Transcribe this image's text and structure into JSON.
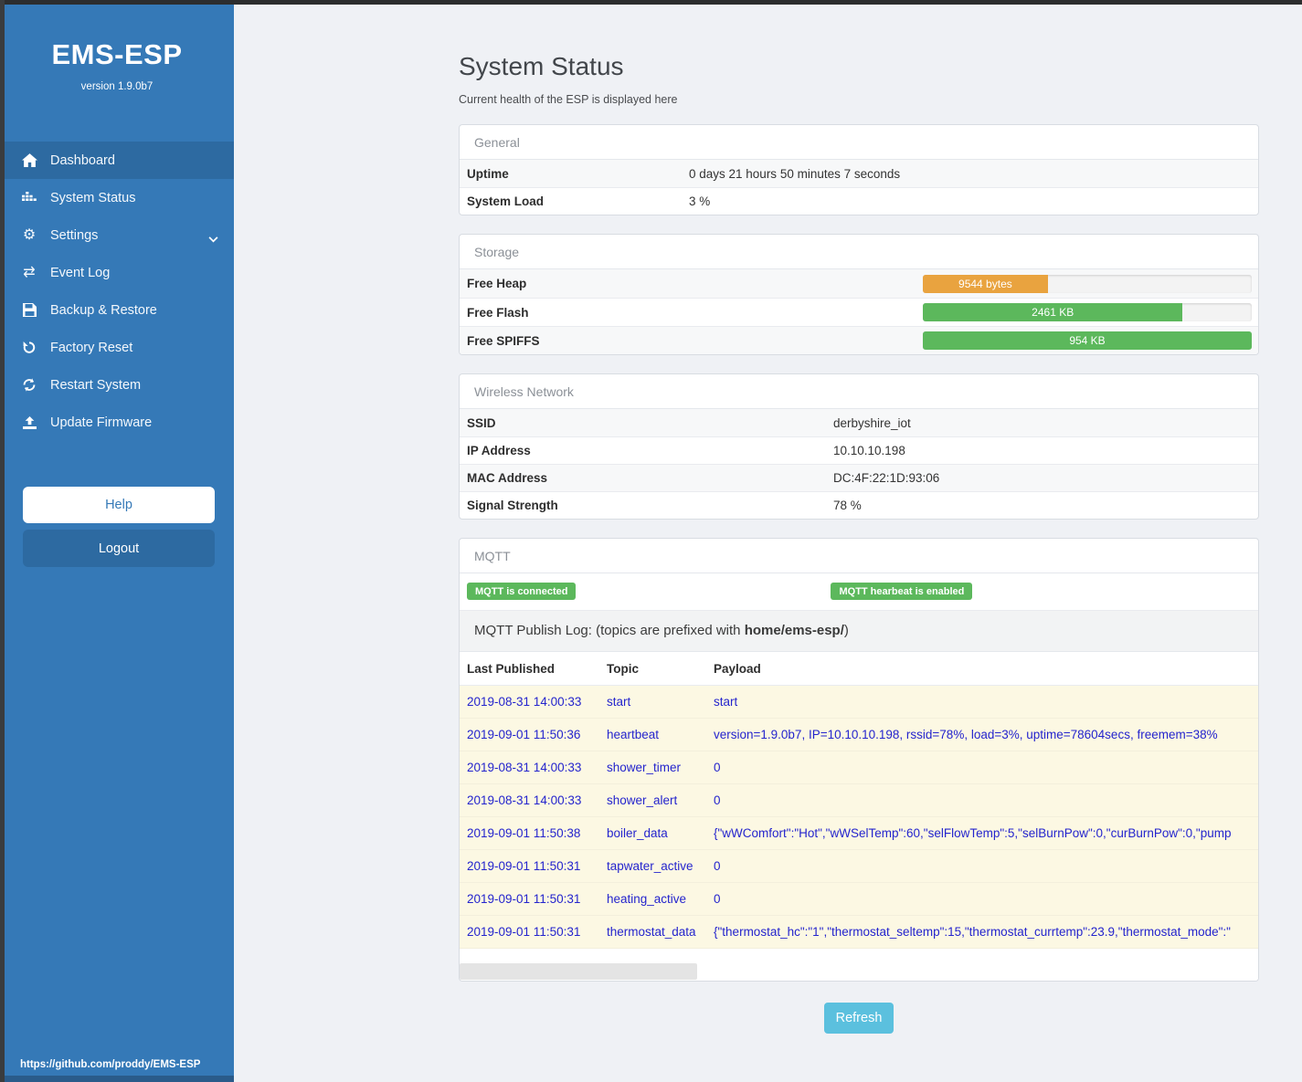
{
  "sidebar": {
    "title": "EMS-ESP",
    "version": "version 1.9.0b7",
    "items": [
      {
        "label": "Dashboard",
        "icon": "home-icon",
        "selected": true
      },
      {
        "label": "System Status",
        "icon": "system-status-icon",
        "selected": false
      },
      {
        "label": "Settings",
        "icon": "gear-icon",
        "selected": false,
        "chevron": true
      },
      {
        "label": "Event Log",
        "icon": "event-log-icon",
        "selected": false
      },
      {
        "label": "Backup & Restore",
        "icon": "save-icon",
        "selected": false
      },
      {
        "label": "Factory Reset",
        "icon": "factory-reset-icon",
        "selected": false
      },
      {
        "label": "Restart System",
        "icon": "restart-icon",
        "selected": false
      },
      {
        "label": "Update Firmware",
        "icon": "upload-icon",
        "selected": false
      }
    ],
    "help_label": "Help",
    "logout_label": "Logout",
    "footer_url": "https://github.com/proddy/EMS-ESP"
  },
  "page": {
    "title": "System Status",
    "subtitle": "Current health of the ESP is displayed here",
    "refresh_label": "Refresh"
  },
  "general": {
    "header": "General",
    "rows": [
      {
        "label": "Uptime",
        "value": "0 days 21 hours 50 minutes 7 seconds"
      },
      {
        "label": "System Load",
        "value": "3 %"
      }
    ]
  },
  "storage": {
    "header": "Storage",
    "colors": {
      "orange": "#e9a33f",
      "green": "#5cb85c"
    },
    "rows": [
      {
        "label": "Free Heap",
        "text": "9544 bytes",
        "percent": 38,
        "color": "orange"
      },
      {
        "label": "Free Flash",
        "text": "2461 KB",
        "percent": 79,
        "color": "green"
      },
      {
        "label": "Free SPIFFS",
        "text": "954 KB",
        "percent": 100,
        "color": "green"
      }
    ]
  },
  "wireless": {
    "header": "Wireless Network",
    "rows": [
      {
        "label": "SSID",
        "value": "derbyshire_iot"
      },
      {
        "label": "IP Address",
        "value": "10.10.10.198"
      },
      {
        "label": "MAC Address",
        "value": "DC:4F:22:1D:93:06"
      },
      {
        "label": "Signal Strength",
        "value": "78 %"
      }
    ]
  },
  "mqtt": {
    "header": "MQTT",
    "badges": [
      "MQTT is connected",
      "MQTT hearbeat is enabled"
    ],
    "publish_log": {
      "prefix_text": "MQTT Publish Log: (topics are prefixed with ",
      "bold_text": "home/ems-esp/",
      "suffix_text": ")"
    },
    "table": {
      "headers": [
        "Last Published",
        "Topic",
        "Payload"
      ],
      "rows": [
        {
          "date": "2019-08-31 14:00:33",
          "topic": "start",
          "payload": "start"
        },
        {
          "date": "2019-09-01 11:50:36",
          "topic": "heartbeat",
          "payload": "version=1.9.0b7, IP=10.10.10.198, rssid=78%, load=3%, uptime=78604secs, freemem=38%"
        },
        {
          "date": "2019-08-31 14:00:33",
          "topic": "shower_timer",
          "payload": "0"
        },
        {
          "date": "2019-08-31 14:00:33",
          "topic": "shower_alert",
          "payload": "0"
        },
        {
          "date": "2019-09-01 11:50:38",
          "topic": "boiler_data",
          "payload": "{\"wWComfort\":\"Hot\",\"wWSelTemp\":60,\"selFlowTemp\":5,\"selBurnPow\":0,\"curBurnPow\":0,\"pump"
        },
        {
          "date": "2019-09-01 11:50:31",
          "topic": "tapwater_active",
          "payload": "0"
        },
        {
          "date": "2019-09-01 11:50:31",
          "topic": "heating_active",
          "payload": "0"
        },
        {
          "date": "2019-09-01 11:50:31",
          "topic": "thermostat_data",
          "payload": "{\"thermostat_hc\":\"1\",\"thermostat_seltemp\":15,\"thermostat_currtemp\":23.9,\"thermostat_mode\":\""
        }
      ]
    }
  }
}
